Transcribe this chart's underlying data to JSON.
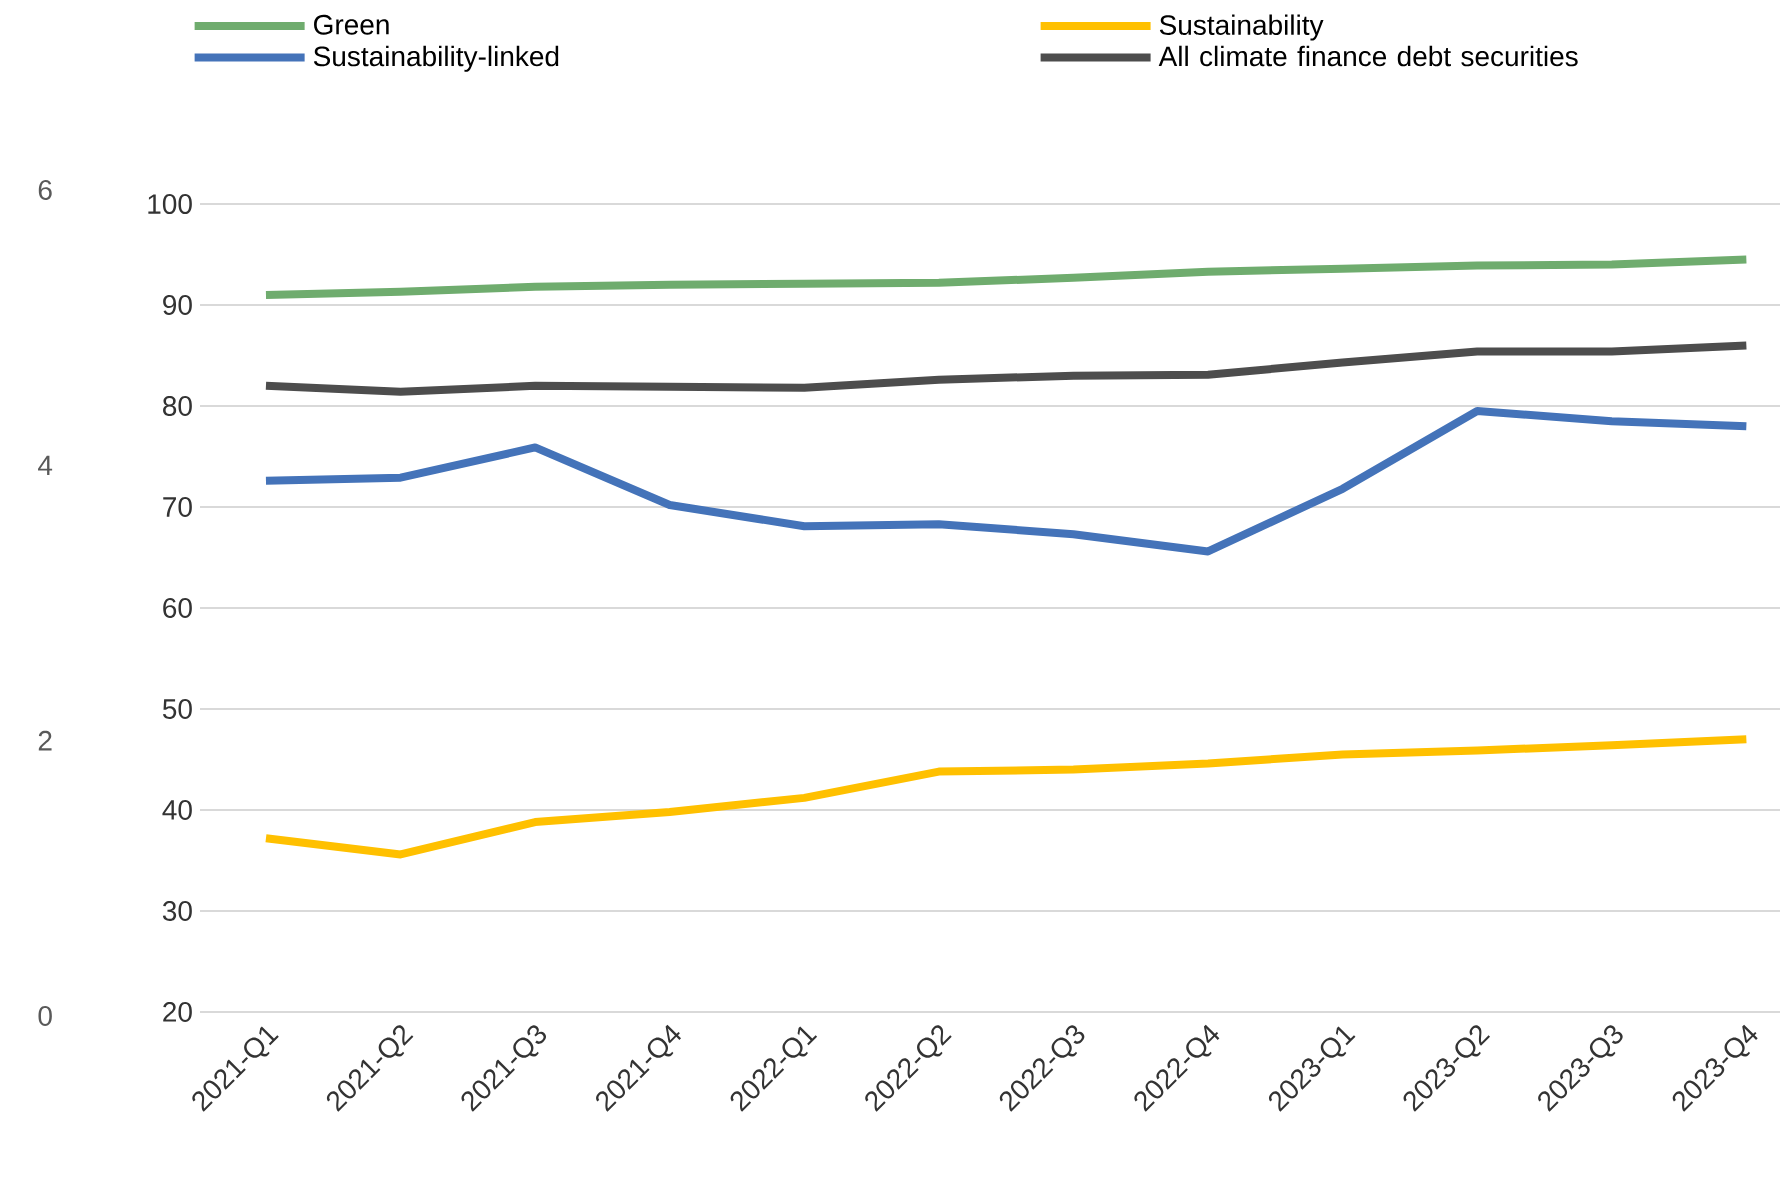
{
  "chart_data": {
    "type": "line",
    "categories": [
      "2021-Q1",
      "2021-Q2",
      "2021-Q3",
      "2021-Q4",
      "2022-Q1",
      "2022-Q2",
      "2022-Q3",
      "2022-Q4",
      "2023-Q1",
      "2023-Q2",
      "2023-Q3",
      "2023-Q4"
    ],
    "series": [
      {
        "name": "Green",
        "color": "#6fac6e",
        "values": [
          91.0,
          91.3,
          91.8,
          92.0,
          92.1,
          92.2,
          92.7,
          93.3,
          93.6,
          93.9,
          94.0,
          94.5
        ]
      },
      {
        "name": "Sustainability",
        "color": "#ffc000",
        "values": [
          37.2,
          35.6,
          38.8,
          39.8,
          41.2,
          43.8,
          44.0,
          44.6,
          45.5,
          45.9,
          46.4,
          47.0
        ]
      },
      {
        "name": "Sustainability-linked",
        "color": "#4473b9",
        "values": [
          72.6,
          72.9,
          75.9,
          70.2,
          68.1,
          68.3,
          67.3,
          65.6,
          71.8,
          79.5,
          78.5,
          78.0
        ]
      },
      {
        "name": "All climate finance debt securities",
        "color": "#4d4d4d",
        "values": [
          82.0,
          81.4,
          82.0,
          81.9,
          81.8,
          82.6,
          83.0,
          83.1,
          84.3,
          85.4,
          85.4,
          86.0
        ]
      }
    ],
    "ylim": [
      20,
      100
    ],
    "yticks": [
      20,
      30,
      40,
      50,
      60,
      70,
      80,
      90,
      100
    ],
    "y2lim": [
      0,
      6
    ],
    "y2ticks": [
      0,
      2,
      4,
      6
    ],
    "grid": "y",
    "legend": "top",
    "line_style": "solid"
  }
}
